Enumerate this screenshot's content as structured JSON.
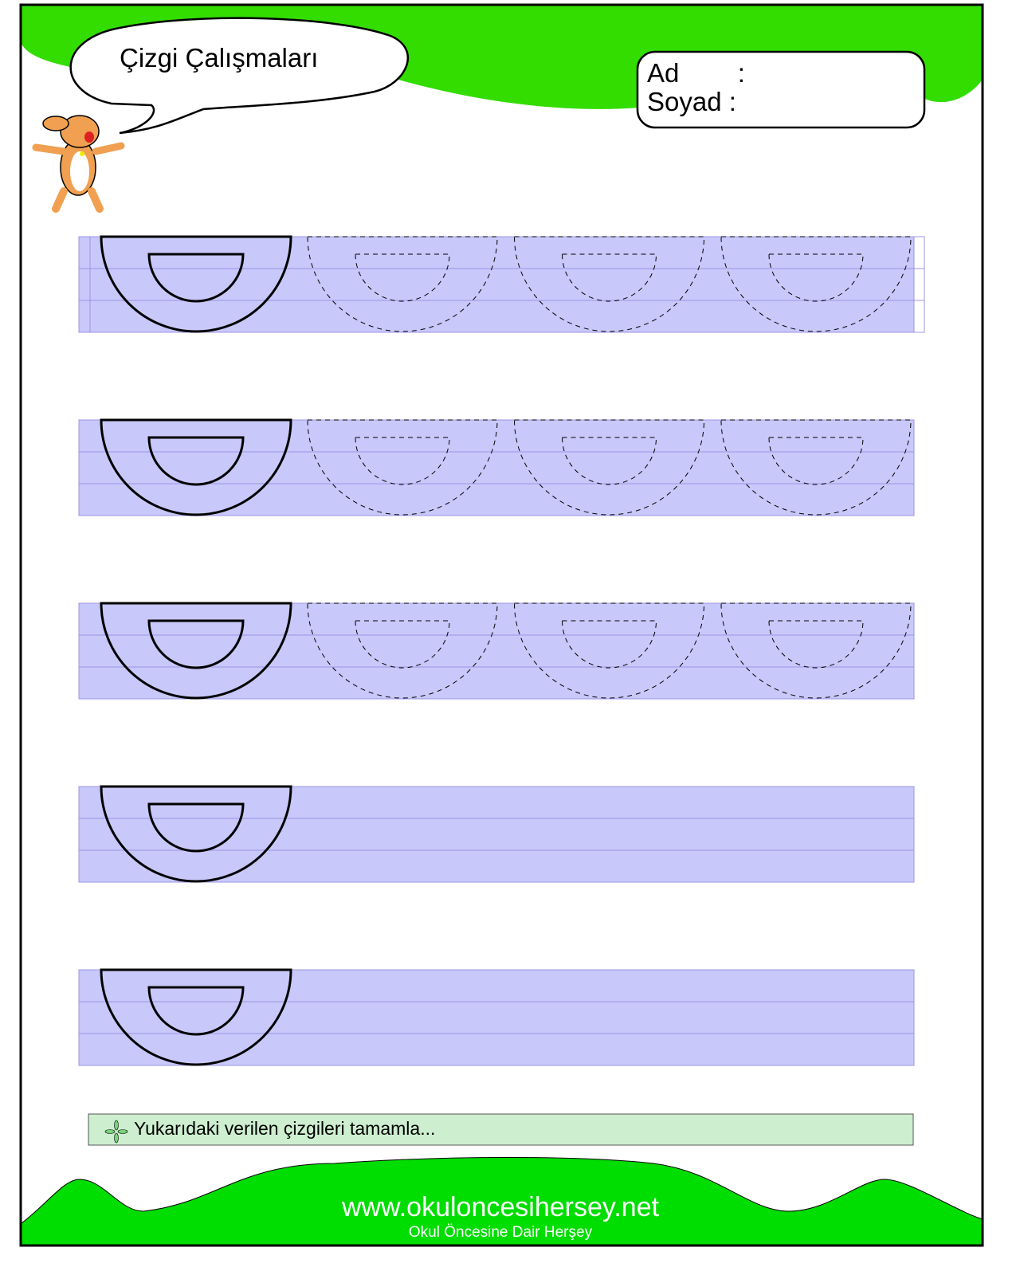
{
  "header": {
    "title": "Çizgi Çalışmaları",
    "name_label": "Ad        :",
    "surname_label": "Soyad :"
  },
  "worksheet": {
    "shape": "double-semicircle",
    "rows": [
      {
        "dashed_copies": 3
      },
      {
        "dashed_copies": 3
      },
      {
        "dashed_copies": 3
      },
      {
        "dashed_copies": 0
      },
      {
        "dashed_copies": 0
      }
    ]
  },
  "instruction": {
    "icon": "flower-icon",
    "text": "Yukarıdaki verilen çizgileri tamamla..."
  },
  "footer": {
    "url": "www.okuloncesihersey.net",
    "tagline": "Okul Öncesine Dair Herşey"
  },
  "colors": {
    "green": "#33dd00",
    "band": "#c8c8fa",
    "band_line": "#9c94e6",
    "instruction_bg": "#cdeecf"
  }
}
